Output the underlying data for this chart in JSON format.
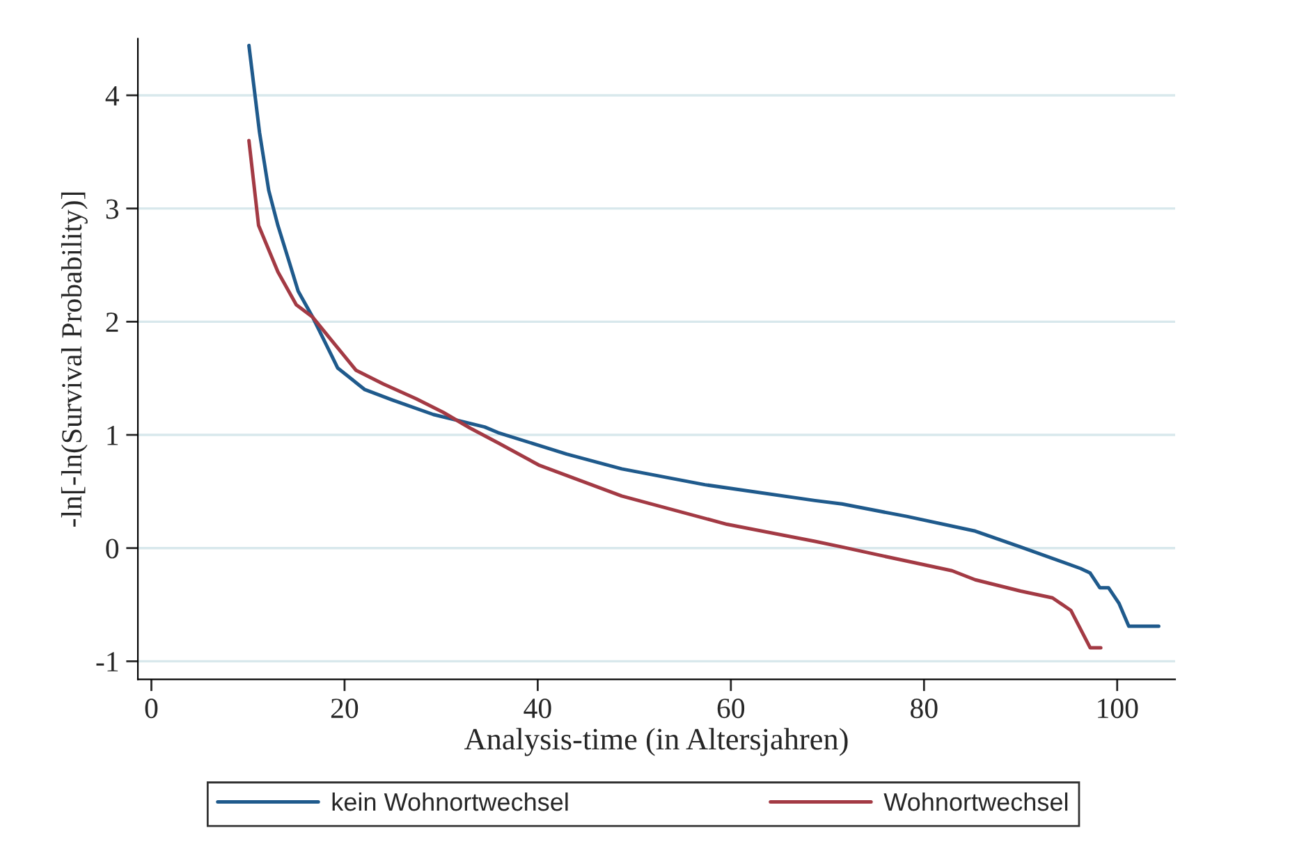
{
  "chart_data": {
    "type": "line",
    "xlabel": "Analysis-time (in Altersjahren)",
    "ylabel": "-ln[-ln(Survival Probability)]",
    "xlim": [
      -1.4,
      106
    ],
    "ylim": [
      -1.16,
      4.5
    ],
    "xticks": [
      0,
      20,
      40,
      60,
      80,
      100
    ],
    "yticks": [
      -1,
      0,
      1,
      2,
      3,
      4
    ],
    "grid": "y",
    "legend": "bottom",
    "marker": "none",
    "line_style": "solid",
    "series": [
      {
        "name": "kein Wohnortwechsel",
        "color": "#1f5a8c",
        "x": [
          10.1,
          11.2,
          12.15,
          13.1,
          14.3,
          15.2,
          16.7,
          19.3,
          22.1,
          24.9,
          29.2,
          34.5,
          35.9,
          43.0,
          48.7,
          57.3,
          68.7,
          71.5,
          78.2,
          85.3,
          90.0,
          96.2,
          97.2,
          98.2,
          99.1,
          100.2,
          101.2,
          104.3
        ],
        "values": [
          4.44,
          3.67,
          3.16,
          2.85,
          2.52,
          2.27,
          2.04,
          1.59,
          1.4,
          1.31,
          1.18,
          1.07,
          1.02,
          0.83,
          0.7,
          0.56,
          0.42,
          0.39,
          0.28,
          0.15,
          0.01,
          -0.18,
          -0.22,
          -0.35,
          -0.35,
          -0.49,
          -0.69,
          -0.69
        ]
      },
      {
        "name": "Wohnortwechsel",
        "color": "#a33a44",
        "x": [
          10.1,
          11.1,
          13.1,
          15.0,
          16.7,
          18.8,
          21.2,
          24.0,
          27.4,
          30.2,
          33.0,
          35.9,
          40.2,
          48.7,
          59.6,
          68.7,
          71.5,
          75.8,
          82.9,
          85.3,
          90.0,
          93.3,
          95.2,
          97.2,
          98.3
        ],
        "values": [
          3.6,
          2.85,
          2.44,
          2.15,
          2.04,
          1.82,
          1.57,
          1.45,
          1.32,
          1.2,
          1.06,
          0.93,
          0.73,
          0.46,
          0.21,
          0.06,
          0.01,
          -0.07,
          -0.2,
          -0.28,
          -0.38,
          -0.44,
          -0.55,
          -0.88,
          -0.88
        ]
      }
    ]
  }
}
